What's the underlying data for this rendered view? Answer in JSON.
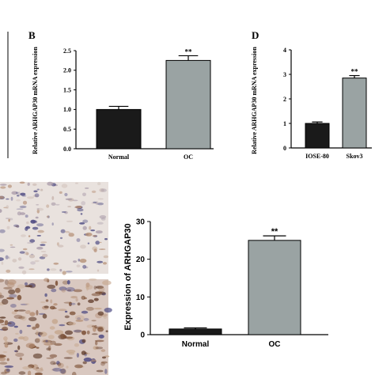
{
  "colors": {
    "black_bar": "#1a1a1a",
    "gray_bar": "#9aa3a3",
    "axis": "#000000",
    "tissue_bg": "#e6ddd8",
    "stain_light": "#b48e74",
    "stain_dark": "#7a4e33",
    "nuclei": "#4d4a82"
  },
  "panels": {
    "B": {
      "letter": "B"
    },
    "D": {
      "letter": "D"
    }
  },
  "chart_data": [
    {
      "id": "B",
      "type": "bar",
      "categories": [
        "Normal",
        "OC"
      ],
      "values": [
        1.0,
        2.25
      ],
      "errors": [
        0.08,
        0.12
      ],
      "significance": [
        "",
        "**"
      ],
      "bar_colors": [
        "#1a1a1a",
        "#9aa3a3"
      ],
      "ylabel": "Relative ARHGAP30 mRNA expression",
      "ylim": [
        0,
        2.5
      ],
      "yticks": [
        "0.0",
        "0.5",
        "1.0",
        "1.5",
        "2.0",
        "2.5"
      ],
      "grid": false
    },
    {
      "id": "D",
      "type": "bar",
      "categories": [
        "IOSE-80",
        "Skov3"
      ],
      "values": [
        1.0,
        2.85
      ],
      "errors": [
        0.06,
        0.1
      ],
      "significance": [
        "",
        "**"
      ],
      "bar_colors": [
        "#1a1a1a",
        "#9aa3a3"
      ],
      "ylabel": "Relative ARHGAP30 mRNA expression",
      "ylim": [
        0,
        4
      ],
      "yticks": [
        "0",
        "1",
        "2",
        "3",
        "4"
      ],
      "grid": false
    },
    {
      "id": "bottom",
      "type": "bar",
      "categories": [
        "Normal",
        "OC"
      ],
      "values": [
        1.5,
        25.0
      ],
      "errors": [
        0.3,
        1.2
      ],
      "significance": [
        "",
        "**"
      ],
      "bar_colors": [
        "#1a1a1a",
        "#9aa3a3"
      ],
      "ylabel": "Expression of ARHGAP30",
      "ylim": [
        0,
        30
      ],
      "yticks": [
        "0",
        "10",
        "20",
        "30"
      ],
      "grid": false
    }
  ]
}
